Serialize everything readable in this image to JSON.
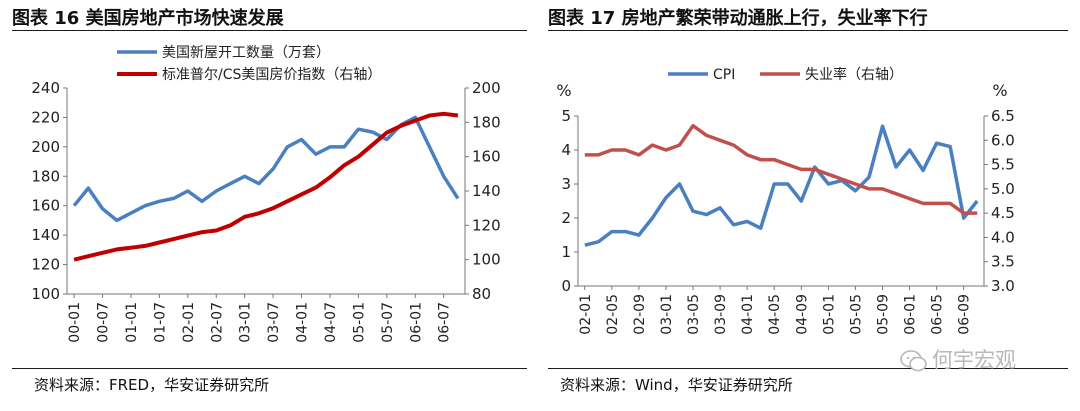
{
  "left": {
    "title": "图表 16  美国房地产市场快速发展",
    "source": "资料来源：FRED，华安证券研究所",
    "chart_data": {
      "type": "line",
      "title": "图表 16  美国房地产市场快速发展",
      "categories": [
        "00-01",
        "00-04",
        "00-07",
        "00-10",
        "01-01",
        "01-04",
        "01-07",
        "01-10",
        "02-01",
        "02-04",
        "02-07",
        "02-10",
        "03-01",
        "03-04",
        "03-07",
        "03-10",
        "04-01",
        "04-04",
        "04-07",
        "04-10",
        "05-01",
        "05-04",
        "05-07",
        "05-10",
        "06-01",
        "06-04",
        "06-07",
        "06-09"
      ],
      "tick_labels": [
        "00-01",
        "00-07",
        "01-01",
        "01-07",
        "02-01",
        "02-07",
        "03-01",
        "03-07",
        "04-01",
        "04-07",
        "05-01",
        "05-07",
        "06-01",
        "06-07"
      ],
      "left_axis": {
        "ylim": [
          100,
          240
        ],
        "ticks": [
          "100",
          "120",
          "140",
          "160",
          "180",
          "200",
          "220",
          "240"
        ]
      },
      "right_axis": {
        "ylim": [
          80,
          200
        ],
        "ticks": [
          "80",
          "100",
          "120",
          "140",
          "160",
          "180",
          "200"
        ]
      },
      "legend_position": "top-left",
      "series": [
        {
          "name": "美国新屋开工数量（万套）",
          "axis": "left",
          "color": "#4a7fc1",
          "values": [
            160,
            172,
            158,
            150,
            155,
            160,
            163,
            165,
            170,
            163,
            170,
            175,
            180,
            175,
            185,
            200,
            205,
            195,
            200,
            200,
            212,
            210,
            205,
            215,
            220,
            200,
            180,
            165
          ]
        },
        {
          "name": "标准普尔/CS美国房价指数（右轴）",
          "axis": "right",
          "color": "#c00000",
          "values": [
            100,
            102,
            104,
            106,
            107,
            108,
            110,
            112,
            114,
            116,
            117,
            120,
            125,
            127,
            130,
            134,
            138,
            142,
            148,
            155,
            160,
            167,
            174,
            178,
            181,
            184,
            185,
            184
          ]
        }
      ]
    }
  },
  "right": {
    "title": "图表 17  房地产繁荣带动通胀上行，失业率下行",
    "source": "资料来源：Wind，华安证券研究所",
    "watermark": "何宇宏观",
    "chart_data": {
      "type": "line",
      "title": "图表 17  房地产繁荣带动通胀上行，失业率下行",
      "categories": [
        "02-01",
        "02-03",
        "02-05",
        "02-07",
        "02-09",
        "02-11",
        "03-01",
        "03-03",
        "03-05",
        "03-07",
        "03-09",
        "03-11",
        "04-01",
        "04-03",
        "04-05",
        "04-07",
        "04-09",
        "04-11",
        "05-01",
        "05-03",
        "05-05",
        "05-07",
        "05-09",
        "05-11",
        "06-01",
        "06-03",
        "06-05",
        "06-07",
        "06-09",
        "06-11"
      ],
      "tick_labels": [
        "02-01",
        "02-05",
        "02-09",
        "03-01",
        "03-05",
        "03-09",
        "04-01",
        "04-05",
        "04-09",
        "05-01",
        "05-05",
        "05-09",
        "06-01",
        "06-05",
        "06-09"
      ],
      "left_axis": {
        "unit": "%",
        "ylim": [
          0,
          5
        ],
        "ticks": [
          "0",
          "1",
          "2",
          "3",
          "4",
          "5"
        ]
      },
      "right_axis": {
        "unit": "%",
        "ylim": [
          3.0,
          6.5
        ],
        "ticks": [
          "3.0",
          "3.5",
          "4.0",
          "4.5",
          "5.0",
          "5.5",
          "6.0",
          "6.5"
        ]
      },
      "legend_position": "top",
      "series": [
        {
          "name": "CPI",
          "axis": "left",
          "color": "#4a7fc1",
          "values": [
            1.2,
            1.3,
            1.6,
            1.6,
            1.5,
            2.0,
            2.6,
            3.0,
            2.2,
            2.1,
            2.3,
            1.8,
            1.9,
            1.7,
            3.0,
            3.0,
            2.5,
            3.5,
            3.0,
            3.1,
            2.8,
            3.2,
            4.7,
            3.5,
            4.0,
            3.4,
            4.2,
            4.1,
            2.0,
            2.5
          ]
        },
        {
          "name": "失业率（右轴）",
          "axis": "right",
          "color": "#c0504d",
          "values": [
            5.7,
            5.7,
            5.8,
            5.8,
            5.7,
            5.9,
            5.8,
            5.9,
            6.3,
            6.1,
            6.0,
            5.9,
            5.7,
            5.6,
            5.6,
            5.5,
            5.4,
            5.4,
            5.3,
            5.2,
            5.1,
            5.0,
            5.0,
            4.9,
            4.8,
            4.7,
            4.7,
            4.7,
            4.5,
            4.5
          ]
        }
      ]
    }
  }
}
